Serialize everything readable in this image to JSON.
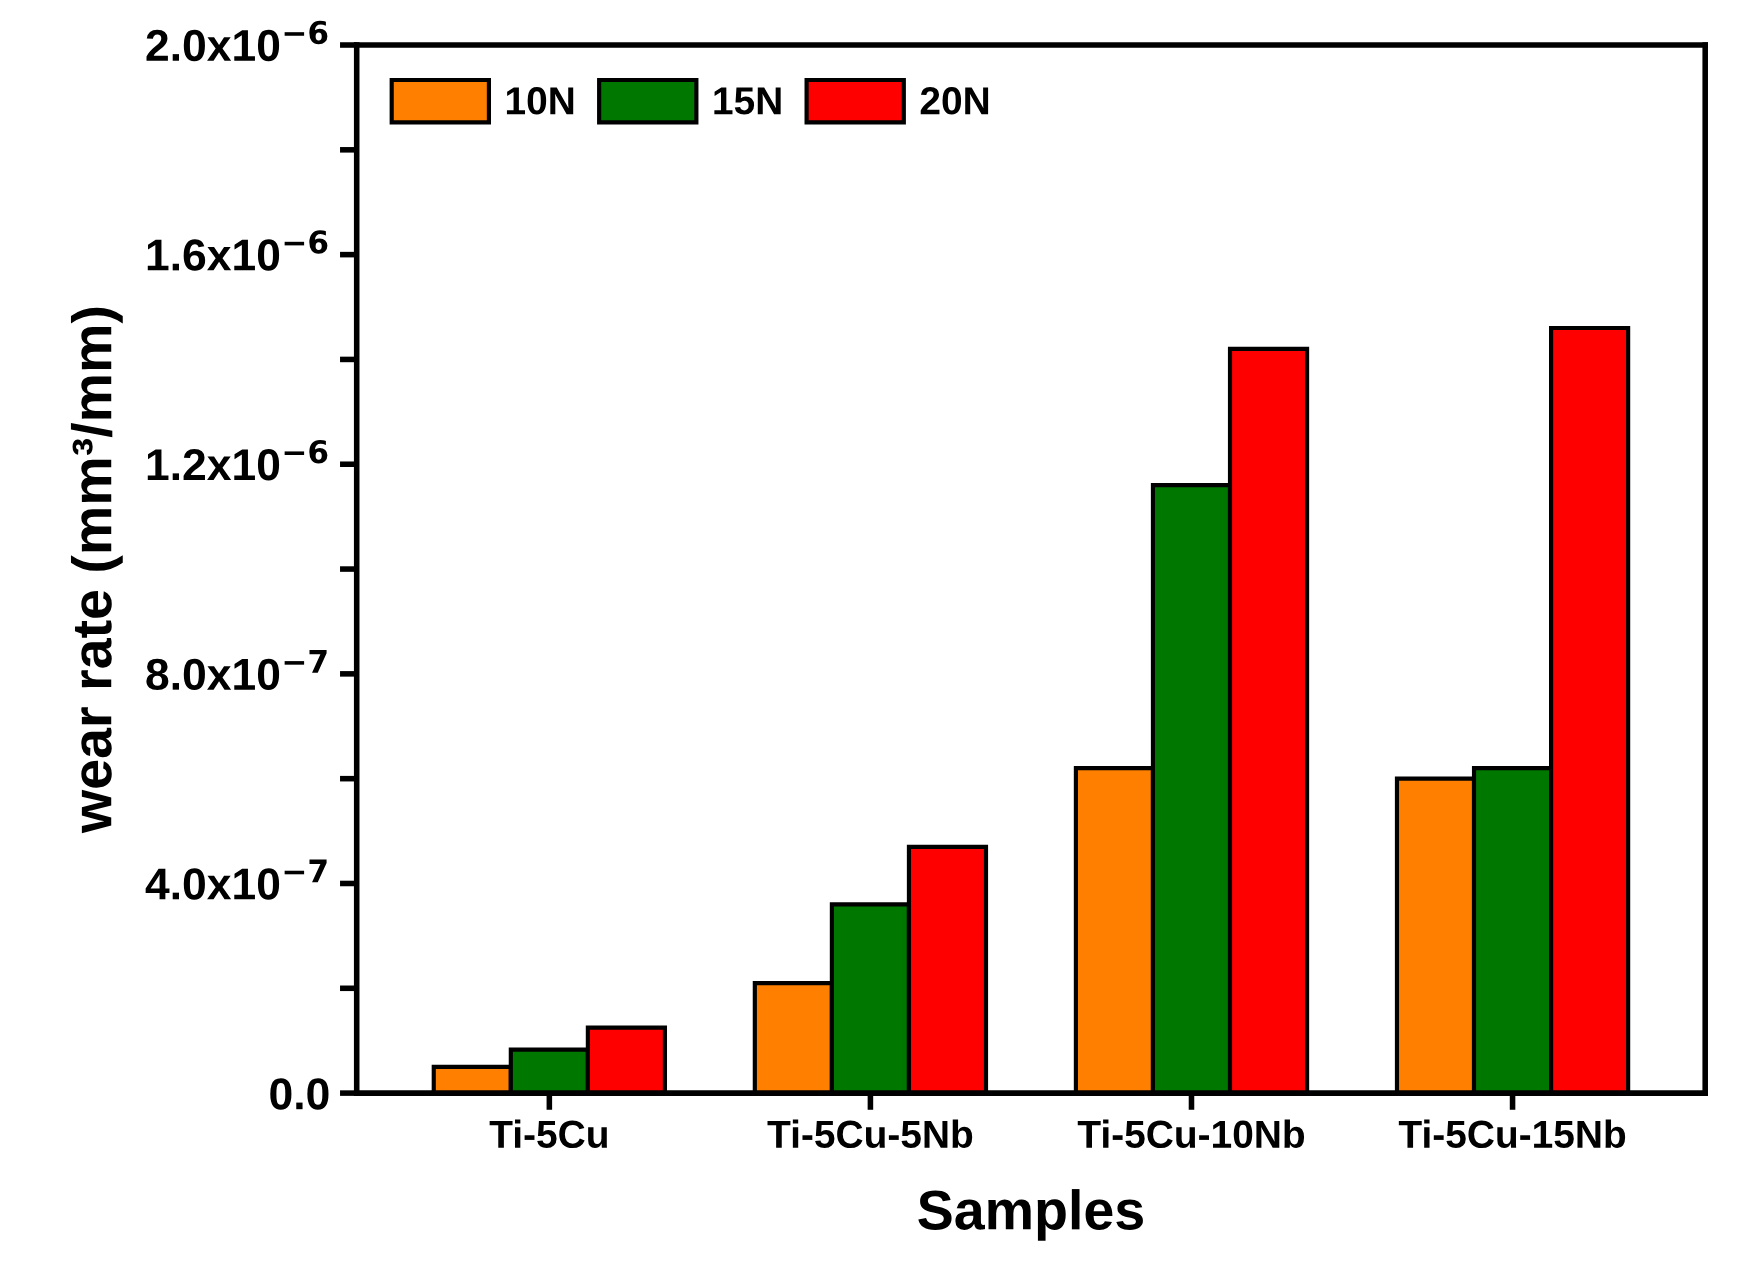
{
  "chart_data": {
    "type": "bar",
    "xlabel": "Samples",
    "ylabel": "wear rate (mm³/mm)",
    "categories": [
      "Ti-5Cu",
      "Ti-5Cu-5Nb",
      "Ti-5Cu-10Nb",
      "Ti-5Cu-15Nb"
    ],
    "series": [
      {
        "name": "10N",
        "color": "#ff8000",
        "values": [
          5e-08,
          2.1e-07,
          6.2e-07,
          6e-07
        ]
      },
      {
        "name": "15N",
        "color": "#007800",
        "values": [
          8.3e-08,
          3.6e-07,
          1.16e-06,
          6.2e-07
        ]
      },
      {
        "name": "20N",
        "color": "#ff0000",
        "values": [
          1.25e-07,
          4.7e-07,
          1.42e-06,
          1.46e-06
        ]
      }
    ],
    "ylim": [
      0,
      2e-06
    ],
    "yticks": [
      {
        "value": 0,
        "label": "0.0"
      },
      {
        "value": 2e-07,
        "label": null
      },
      {
        "value": 4e-07,
        "label": "4.0x10$^{−7}$"
      },
      {
        "value": 6e-07,
        "label": null
      },
      {
        "value": 8e-07,
        "label": "8.0x10$^{−7}$"
      },
      {
        "value": 1e-06,
        "label": null
      },
      {
        "value": 1.2e-06,
        "label": "1.2x10$^{−6}$"
      },
      {
        "value": 1.4e-06,
        "label": null
      },
      {
        "value": 1.6e-06,
        "label": "1.6x10$^{−6}$"
      },
      {
        "value": 1.8e-06,
        "label": null
      },
      {
        "value": 2e-06,
        "label": "2.0x10$^{−6}$"
      }
    ],
    "legend": "top left",
    "grid": false
  }
}
